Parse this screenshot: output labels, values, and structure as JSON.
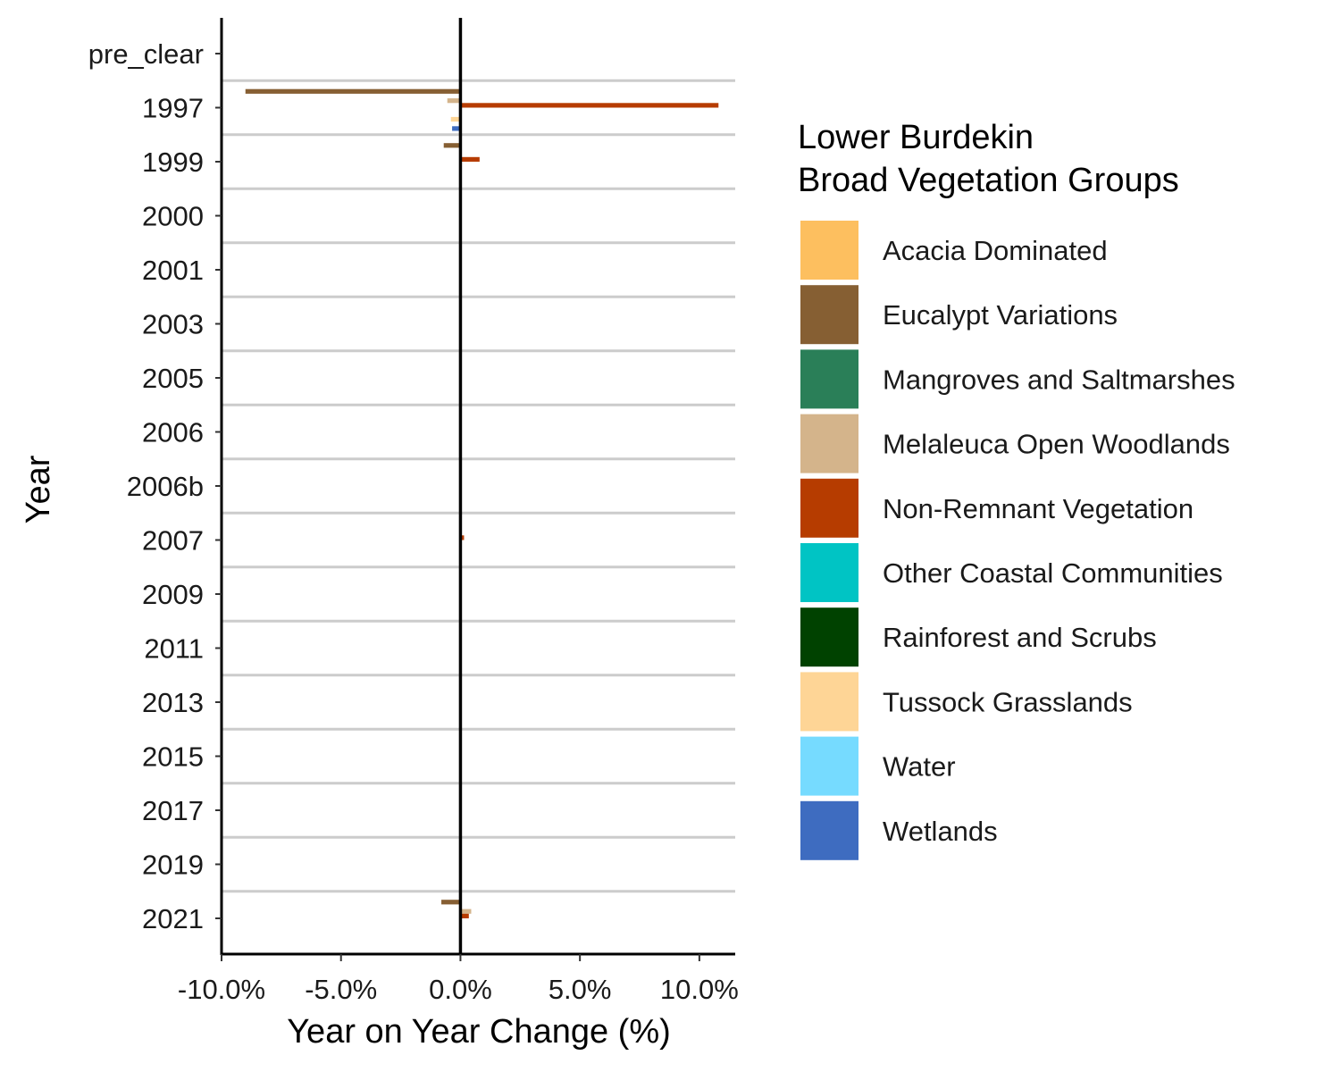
{
  "chart_data": {
    "type": "bar",
    "orientation": "horizontal",
    "xlabel": "Year on Year Change (%)",
    "ylabel": "Year",
    "xlim": [
      -10,
      11.5
    ],
    "x_ticks": [
      -10,
      -5,
      0,
      5,
      10
    ],
    "x_tick_labels": [
      "-10.0%",
      "-5.0%",
      "0.0%",
      "5.0%",
      "10.0%"
    ],
    "categories": [
      "pre_clear",
      "1997",
      "1999",
      "2000",
      "2001",
      "2003",
      "2005",
      "2006",
      "2006b",
      "2007",
      "2009",
      "2011",
      "2013",
      "2015",
      "2017",
      "2019",
      "2021"
    ],
    "legend": {
      "title_lines": [
        "Lower Burdekin",
        "Broad Vegetation Groups"
      ],
      "position": "right"
    },
    "grid": "horizontal separators between categories",
    "series": [
      {
        "name": "Acacia Dominated",
        "color": "#FDBF5F",
        "values": [
          0,
          0,
          0,
          0,
          0,
          0,
          0,
          0,
          0,
          0,
          0,
          0,
          0,
          0,
          0,
          0,
          0
        ]
      },
      {
        "name": "Eucalypt Variations",
        "color": "#865F33",
        "values": [
          0,
          -9.0,
          -0.7,
          0,
          0,
          0,
          0,
          0,
          0,
          -0.05,
          0,
          0,
          0,
          0,
          0,
          0,
          -0.8
        ]
      },
      {
        "name": "Mangroves and Saltmarshes",
        "color": "#2A7F58",
        "values": [
          0,
          0,
          0,
          0,
          0,
          0,
          0,
          0,
          0,
          0,
          0,
          0,
          0,
          0,
          0,
          0,
          0
        ]
      },
      {
        "name": "Melaleuca Open Woodlands",
        "color": "#D4B48B",
        "values": [
          0,
          -0.55,
          0,
          0,
          0,
          0,
          0,
          0,
          0,
          0,
          0,
          0,
          0,
          0,
          0,
          0,
          0.45
        ]
      },
      {
        "name": "Non-Remnant Vegetation",
        "color": "#B63C00",
        "values": [
          0,
          10.8,
          0.8,
          0,
          0,
          0,
          0,
          0,
          0,
          0.15,
          0,
          0,
          0,
          0,
          0,
          0,
          0.35
        ]
      },
      {
        "name": "Other Coastal Communities",
        "color": "#00C4C4",
        "values": [
          0,
          0,
          0,
          0,
          0,
          0,
          0,
          0,
          0,
          0,
          0,
          0,
          0,
          0,
          0,
          0,
          0
        ]
      },
      {
        "name": "Rainforest and Scrubs",
        "color": "#004200",
        "values": [
          0,
          0,
          0,
          0,
          0,
          0,
          0,
          0,
          0,
          0,
          0,
          0,
          0,
          0,
          0,
          0,
          0
        ]
      },
      {
        "name": "Tussock Grasslands",
        "color": "#FED596",
        "values": [
          0,
          -0.4,
          0,
          0,
          0,
          0,
          0,
          0,
          0,
          0,
          0,
          0,
          0,
          0,
          0,
          0,
          0
        ]
      },
      {
        "name": "Water",
        "color": "#76DBFF",
        "values": [
          0,
          0,
          0,
          0,
          0,
          0,
          0,
          0,
          0,
          0,
          0,
          0,
          0,
          0,
          0,
          0,
          0
        ]
      },
      {
        "name": "Wetlands",
        "color": "#3E6CC0",
        "values": [
          0,
          -0.35,
          0,
          0,
          0,
          0,
          0,
          0,
          0,
          0,
          0,
          0,
          0,
          0,
          0,
          0,
          0
        ]
      }
    ]
  }
}
